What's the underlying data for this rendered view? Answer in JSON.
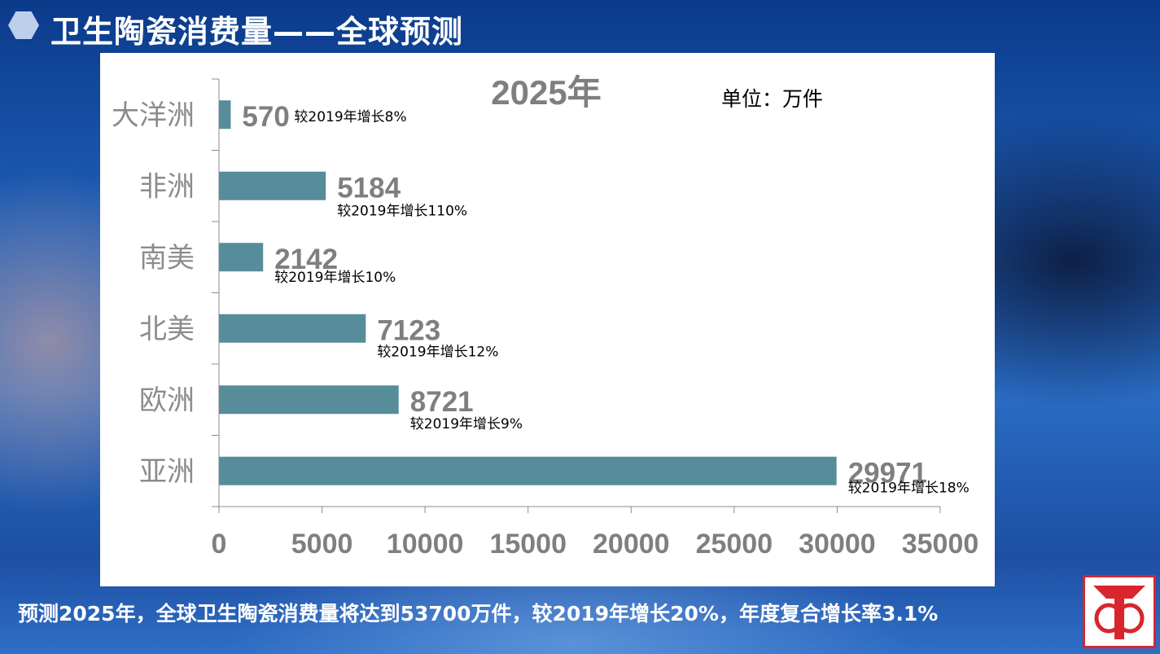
{
  "header": {
    "title": "卫生陶瓷消费量——全球预测"
  },
  "footer": {
    "text": "预测2025年，全球卫生陶瓷消费量将达到53700万件，较2019年增长20%，年度复合增长率3.1%"
  },
  "colors": {
    "bar": "#578d9a",
    "value_label": "#7f7f7f",
    "category_label": "#8c8c8c",
    "logo_red": "#d9252c"
  },
  "chart_data": {
    "type": "bar",
    "orientation": "horizontal",
    "title": "2025年",
    "unit_label": "单位：万件",
    "categories": [
      "大洋洲",
      "非洲",
      "南美",
      "北美",
      "欧洲",
      "亚洲"
    ],
    "values": [
      570,
      5184,
      2142,
      7123,
      8721,
      29971
    ],
    "value_labels": [
      "570",
      "5184",
      "2142",
      "7123",
      "8721",
      "29971"
    ],
    "annotations": [
      "较2019年增长8%",
      "较2019年增长110%",
      "较2019年增长10%",
      "较2019年增长12%",
      "较2019年增长9%",
      "较2019年增长18%"
    ],
    "xlim": [
      0,
      35000
    ],
    "x_ticks": [
      "0",
      "5000",
      "10000",
      "15000",
      "20000",
      "25000",
      "30000",
      "35000"
    ],
    "grid": false,
    "legend": "none"
  }
}
